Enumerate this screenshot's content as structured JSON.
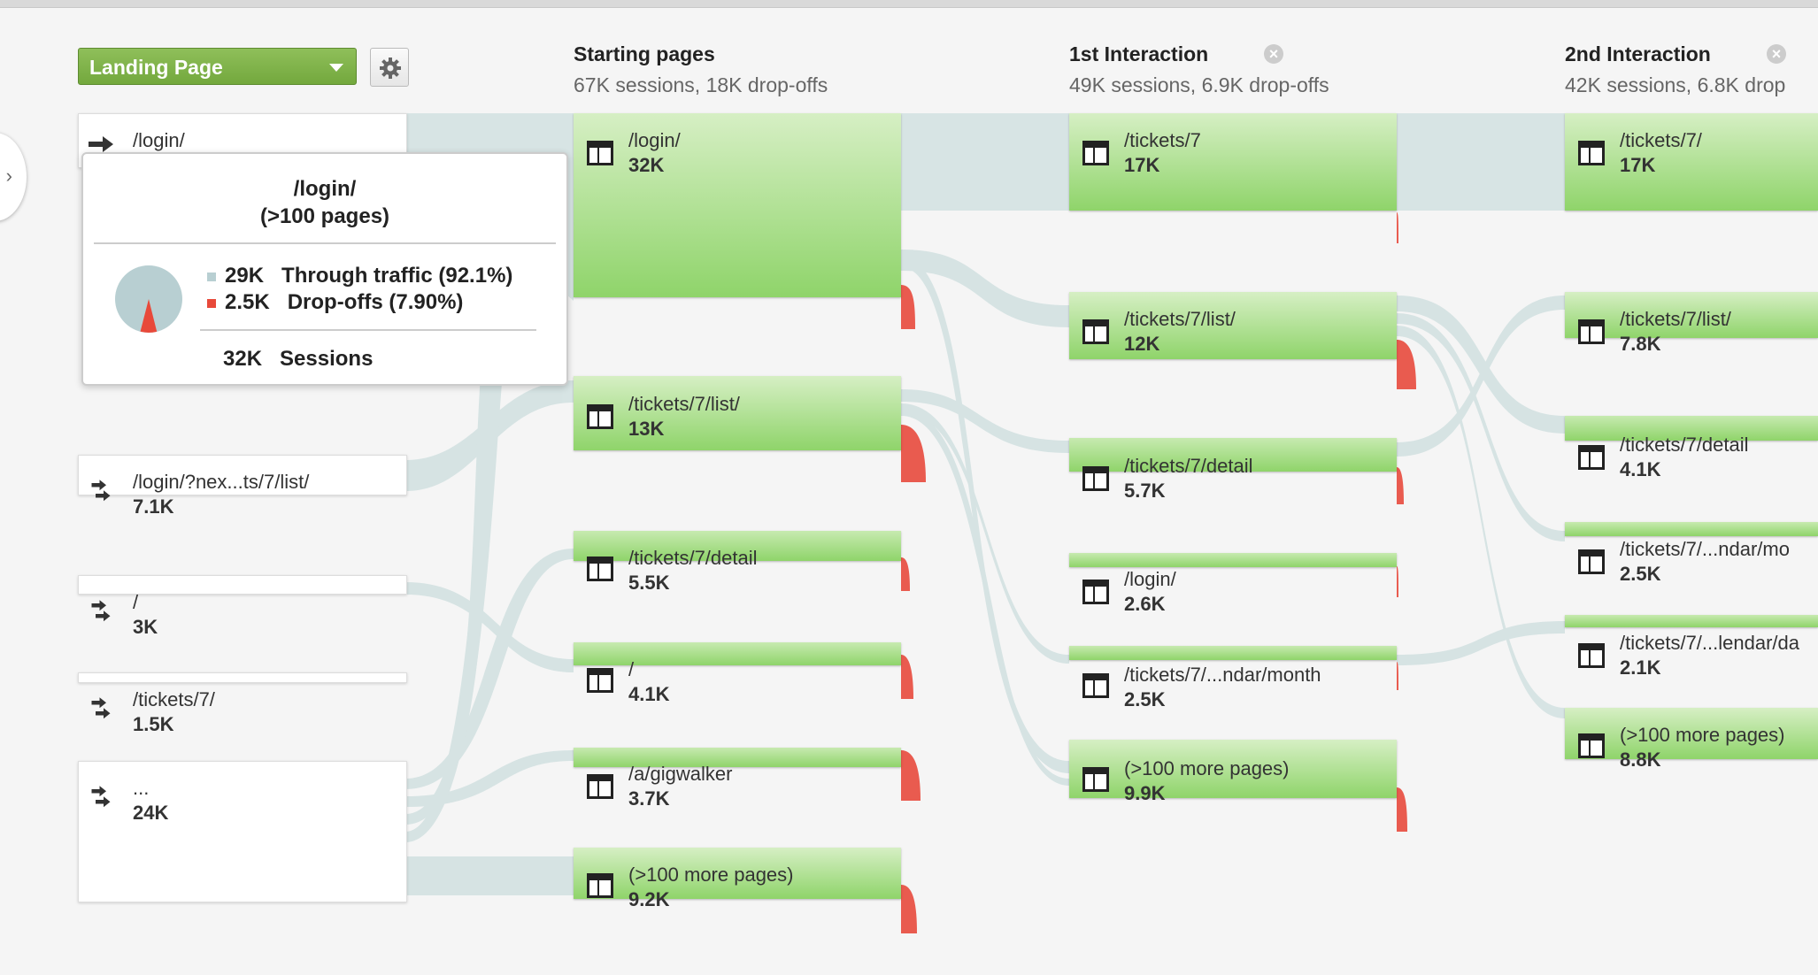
{
  "dimension_select": {
    "label": "Landing Page"
  },
  "columns": [
    {
      "title": "Starting pages",
      "subtitle": "67K sessions, 18K drop-offs"
    },
    {
      "title": "1st Interaction",
      "subtitle": "49K sessions, 6.9K drop-offs"
    },
    {
      "title": "2nd Interaction",
      "subtitle": "42K sessions, 6.8K drop"
    }
  ],
  "sources": [
    {
      "label": "/login/",
      "value": ""
    },
    {
      "label": "/login/?nex...ts/7/list/",
      "value": "7.1K"
    },
    {
      "label": "/",
      "value": "3K"
    },
    {
      "label": "/tickets/7/",
      "value": "1.5K"
    },
    {
      "label": "...",
      "value": "24K"
    }
  ],
  "starting_pages": [
    {
      "label": "/login/",
      "value": "32K"
    },
    {
      "label": "/tickets/7/list/",
      "value": "13K"
    },
    {
      "label": "/tickets/7/detail",
      "value": "5.5K"
    },
    {
      "label": "/",
      "value": "4.1K"
    },
    {
      "label": "/a/gigwalker",
      "value": "3.7K"
    },
    {
      "label": "(>100 more pages)",
      "value": "9.2K"
    }
  ],
  "first_interaction": [
    {
      "label": "/tickets/7",
      "value": "17K"
    },
    {
      "label": "/tickets/7/list/",
      "value": "12K"
    },
    {
      "label": "/tickets/7/detail",
      "value": "5.7K"
    },
    {
      "label": "/login/",
      "value": "2.6K"
    },
    {
      "label": "/tickets/7/...ndar/month",
      "value": "2.5K"
    },
    {
      "label": "(>100 more pages)",
      "value": "9.9K"
    }
  ],
  "second_interaction": [
    {
      "label": "/tickets/7/",
      "value": "17K"
    },
    {
      "label": "/tickets/7/list/",
      "value": "7.8K"
    },
    {
      "label": "/tickets/7/detail",
      "value": "4.1K"
    },
    {
      "label": "/tickets/7/...ndar/mo",
      "value": "2.5K"
    },
    {
      "label": "/tickets/7/...lendar/da",
      "value": "2.1K"
    },
    {
      "label": "(>100 more pages)",
      "value": "8.8K"
    }
  ],
  "tooltip": {
    "title": "/login/",
    "subtitle": "(>100 pages)",
    "through_value": "29K",
    "through_label": "Through traffic (92.1%)",
    "through_fraction": 0.921,
    "dropoff_value": "2.5K",
    "dropoff_label": "Drop-offs (7.90%)",
    "dropoff_fraction": 0.079,
    "sessions_value": "32K",
    "sessions_label": "Sessions"
  },
  "colors": {
    "node_green": "#8fd46a",
    "link": "#d5e3e3",
    "dropoff": "#e95b4f",
    "select_green": "#7cb342"
  },
  "icons": {
    "gear": "gear-icon",
    "close": "close-icon",
    "page": "page-icon",
    "entry": "entry-arrow-icon"
  }
}
